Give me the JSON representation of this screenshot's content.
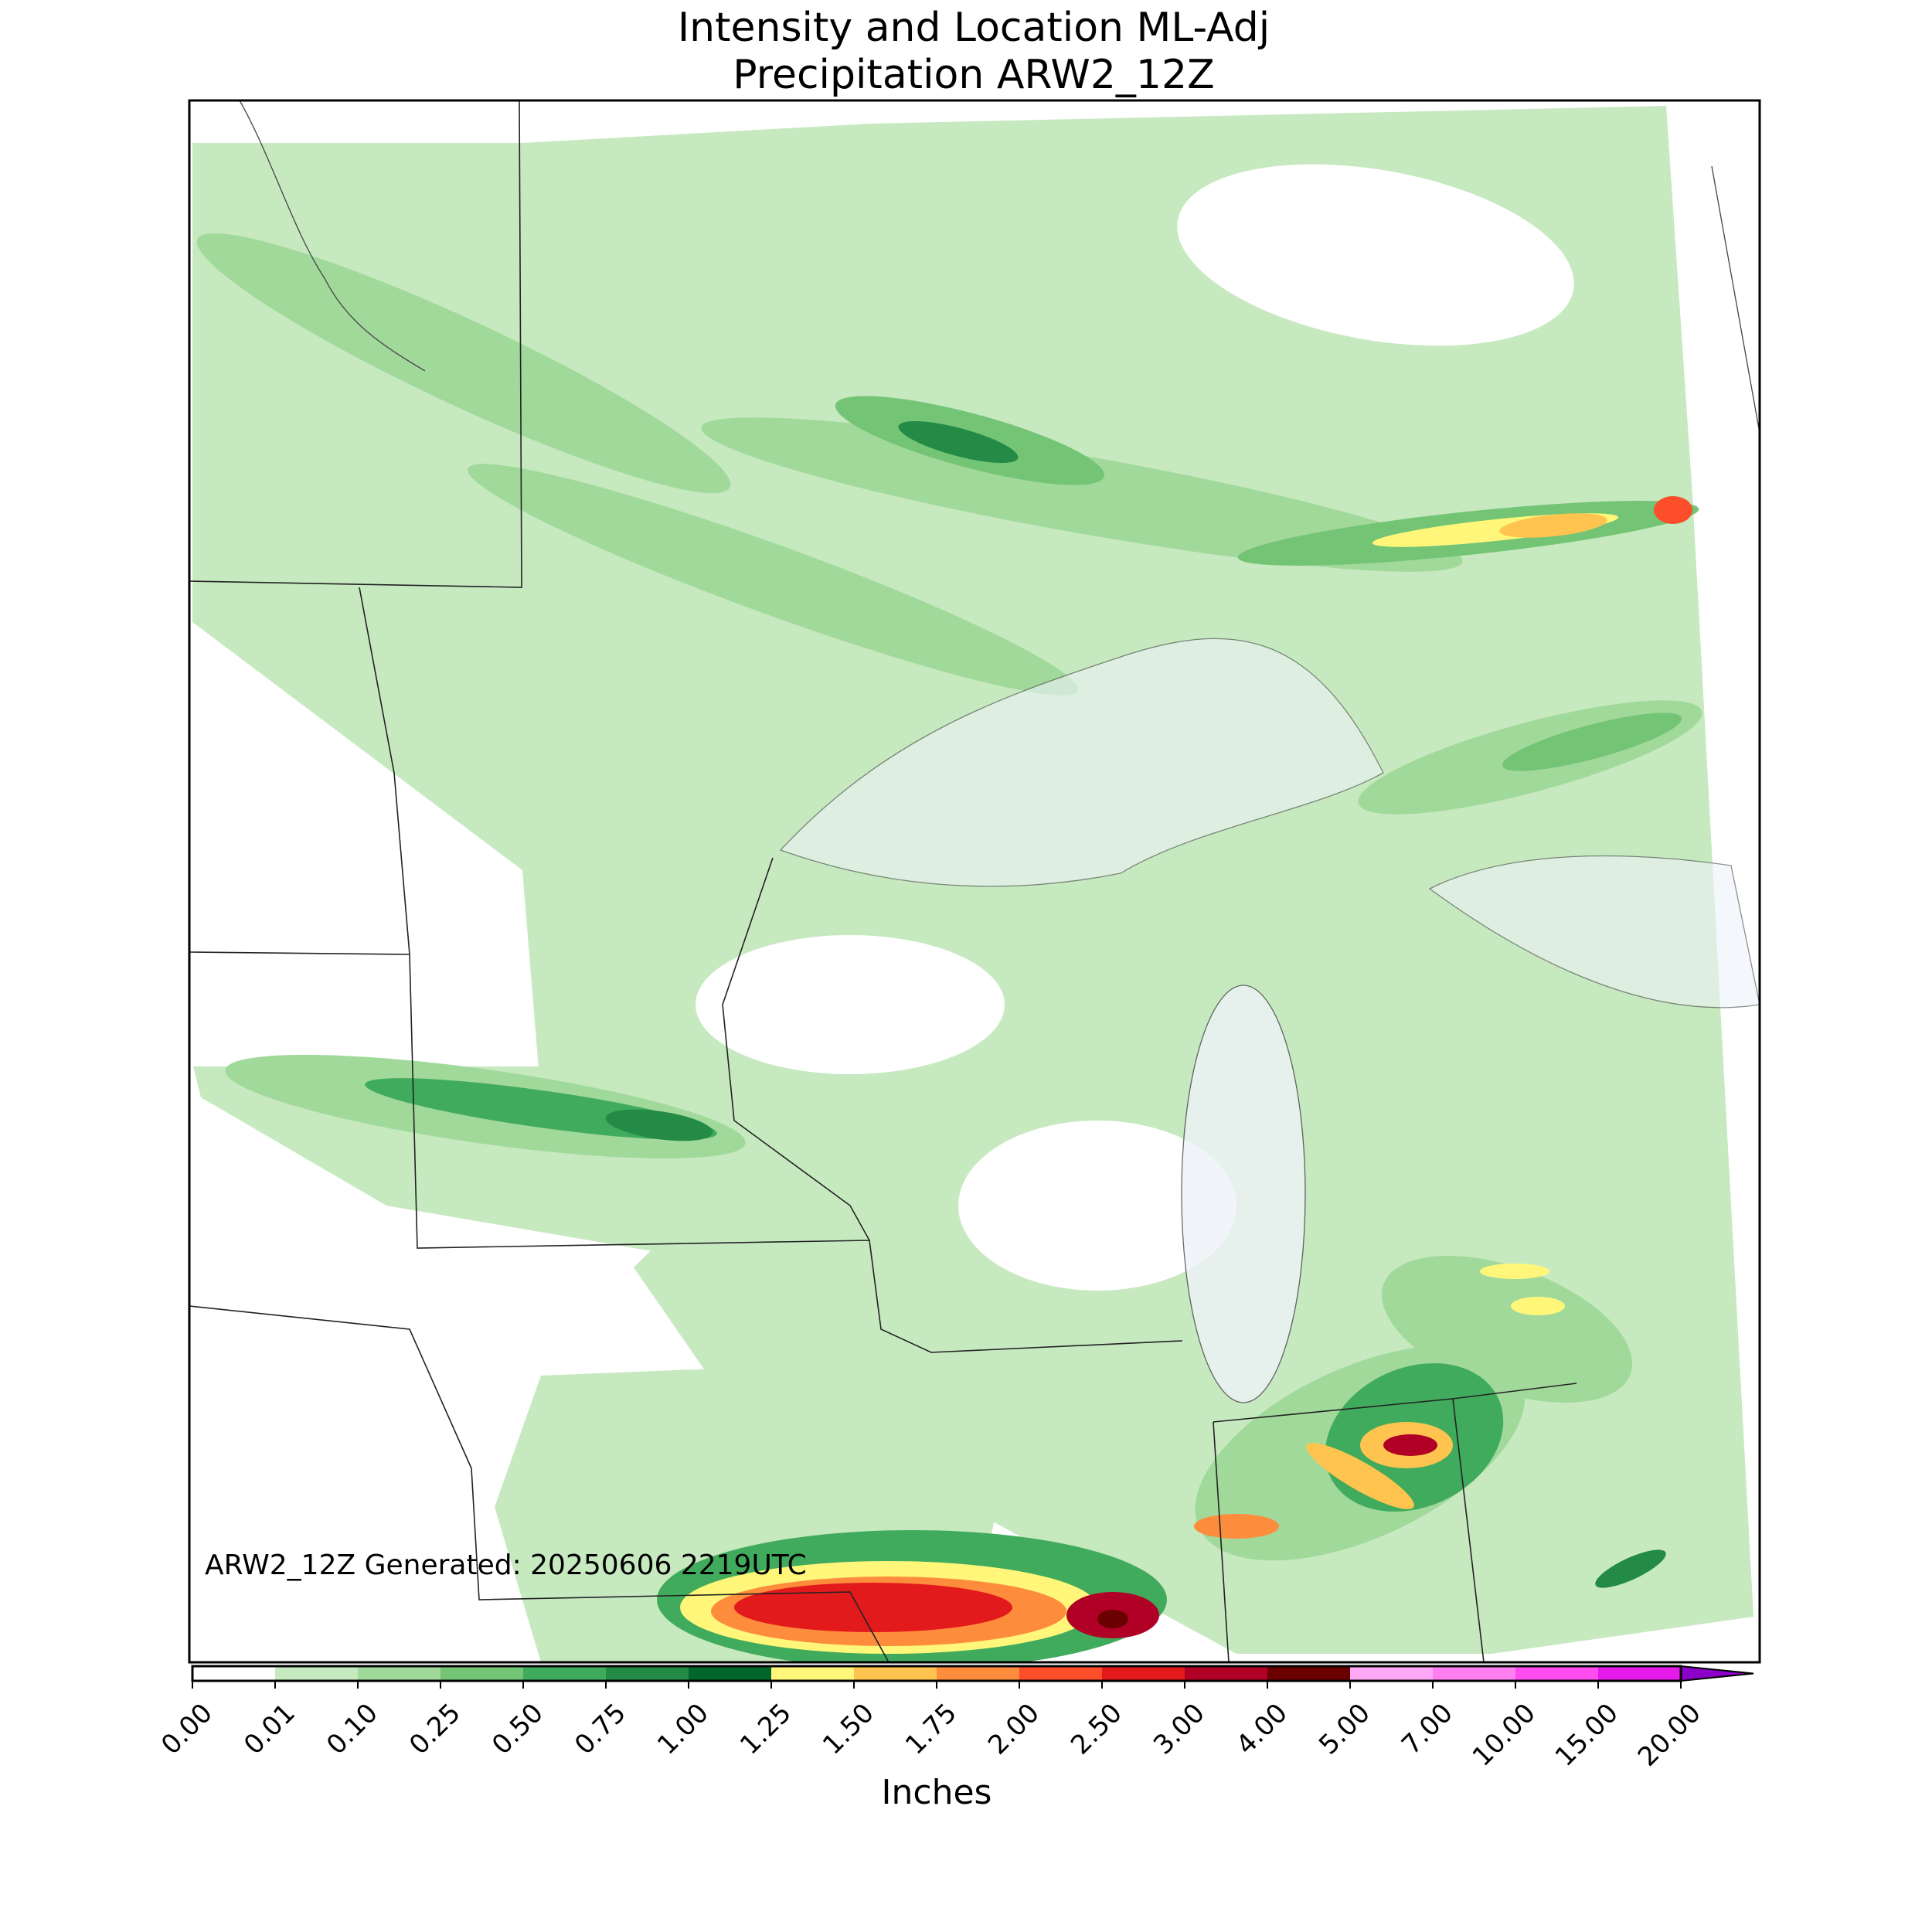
{
  "map": {
    "title": [
      "Intensity and Location ML-Adj",
      "Precipitation ARW2_12Z"
    ],
    "annotation": "ARW2_12Z Generated: 20250606 2219UTC",
    "colorbar": {
      "label": "Inches",
      "ticks": [
        {
          "value": 0,
          "label": "0.00"
        },
        {
          "value": 0.01,
          "label": "0.01"
        },
        {
          "value": 0.1,
          "label": "0.10"
        },
        {
          "value": 0.25,
          "label": "0.25"
        },
        {
          "value": 0.5,
          "label": "0.50"
        },
        {
          "value": 0.75,
          "label": "0.75"
        },
        {
          "value": 1,
          "label": "1.00"
        },
        {
          "value": 1.25,
          "label": "1.25"
        },
        {
          "value": 1.5,
          "label": "1.50"
        },
        {
          "value": 1.75,
          "label": "1.75"
        },
        {
          "value": 2,
          "label": "2.00"
        },
        {
          "value": 2.5,
          "label": "2.50"
        },
        {
          "value": 3,
          "label": "3.00"
        },
        {
          "value": 4,
          "label": "4.00"
        },
        {
          "value": 5,
          "label": "5.00"
        },
        {
          "value": 7,
          "label": "7.00"
        },
        {
          "value": 10,
          "label": "10.00"
        },
        {
          "value": 15,
          "label": "15.00"
        },
        {
          "value": 20,
          "label": "20.00"
        }
      ],
      "colors": [
        "#ffffff",
        "#c7e9c0",
        "#a1d99b",
        "#74c476",
        "#41ab5d",
        "#238b45",
        "#00662a",
        "#fff67a",
        "#fec44f",
        "#fd8d3c",
        "#fc4e2a",
        "#e31a1c",
        "#b10026",
        "#6b0000",
        "#ffa8f5",
        "#ff7ff0",
        "#ff4cee",
        "#e61ae8",
        "#b000d4"
      ],
      "extend_color": "#8c00c8"
    }
  }
}
